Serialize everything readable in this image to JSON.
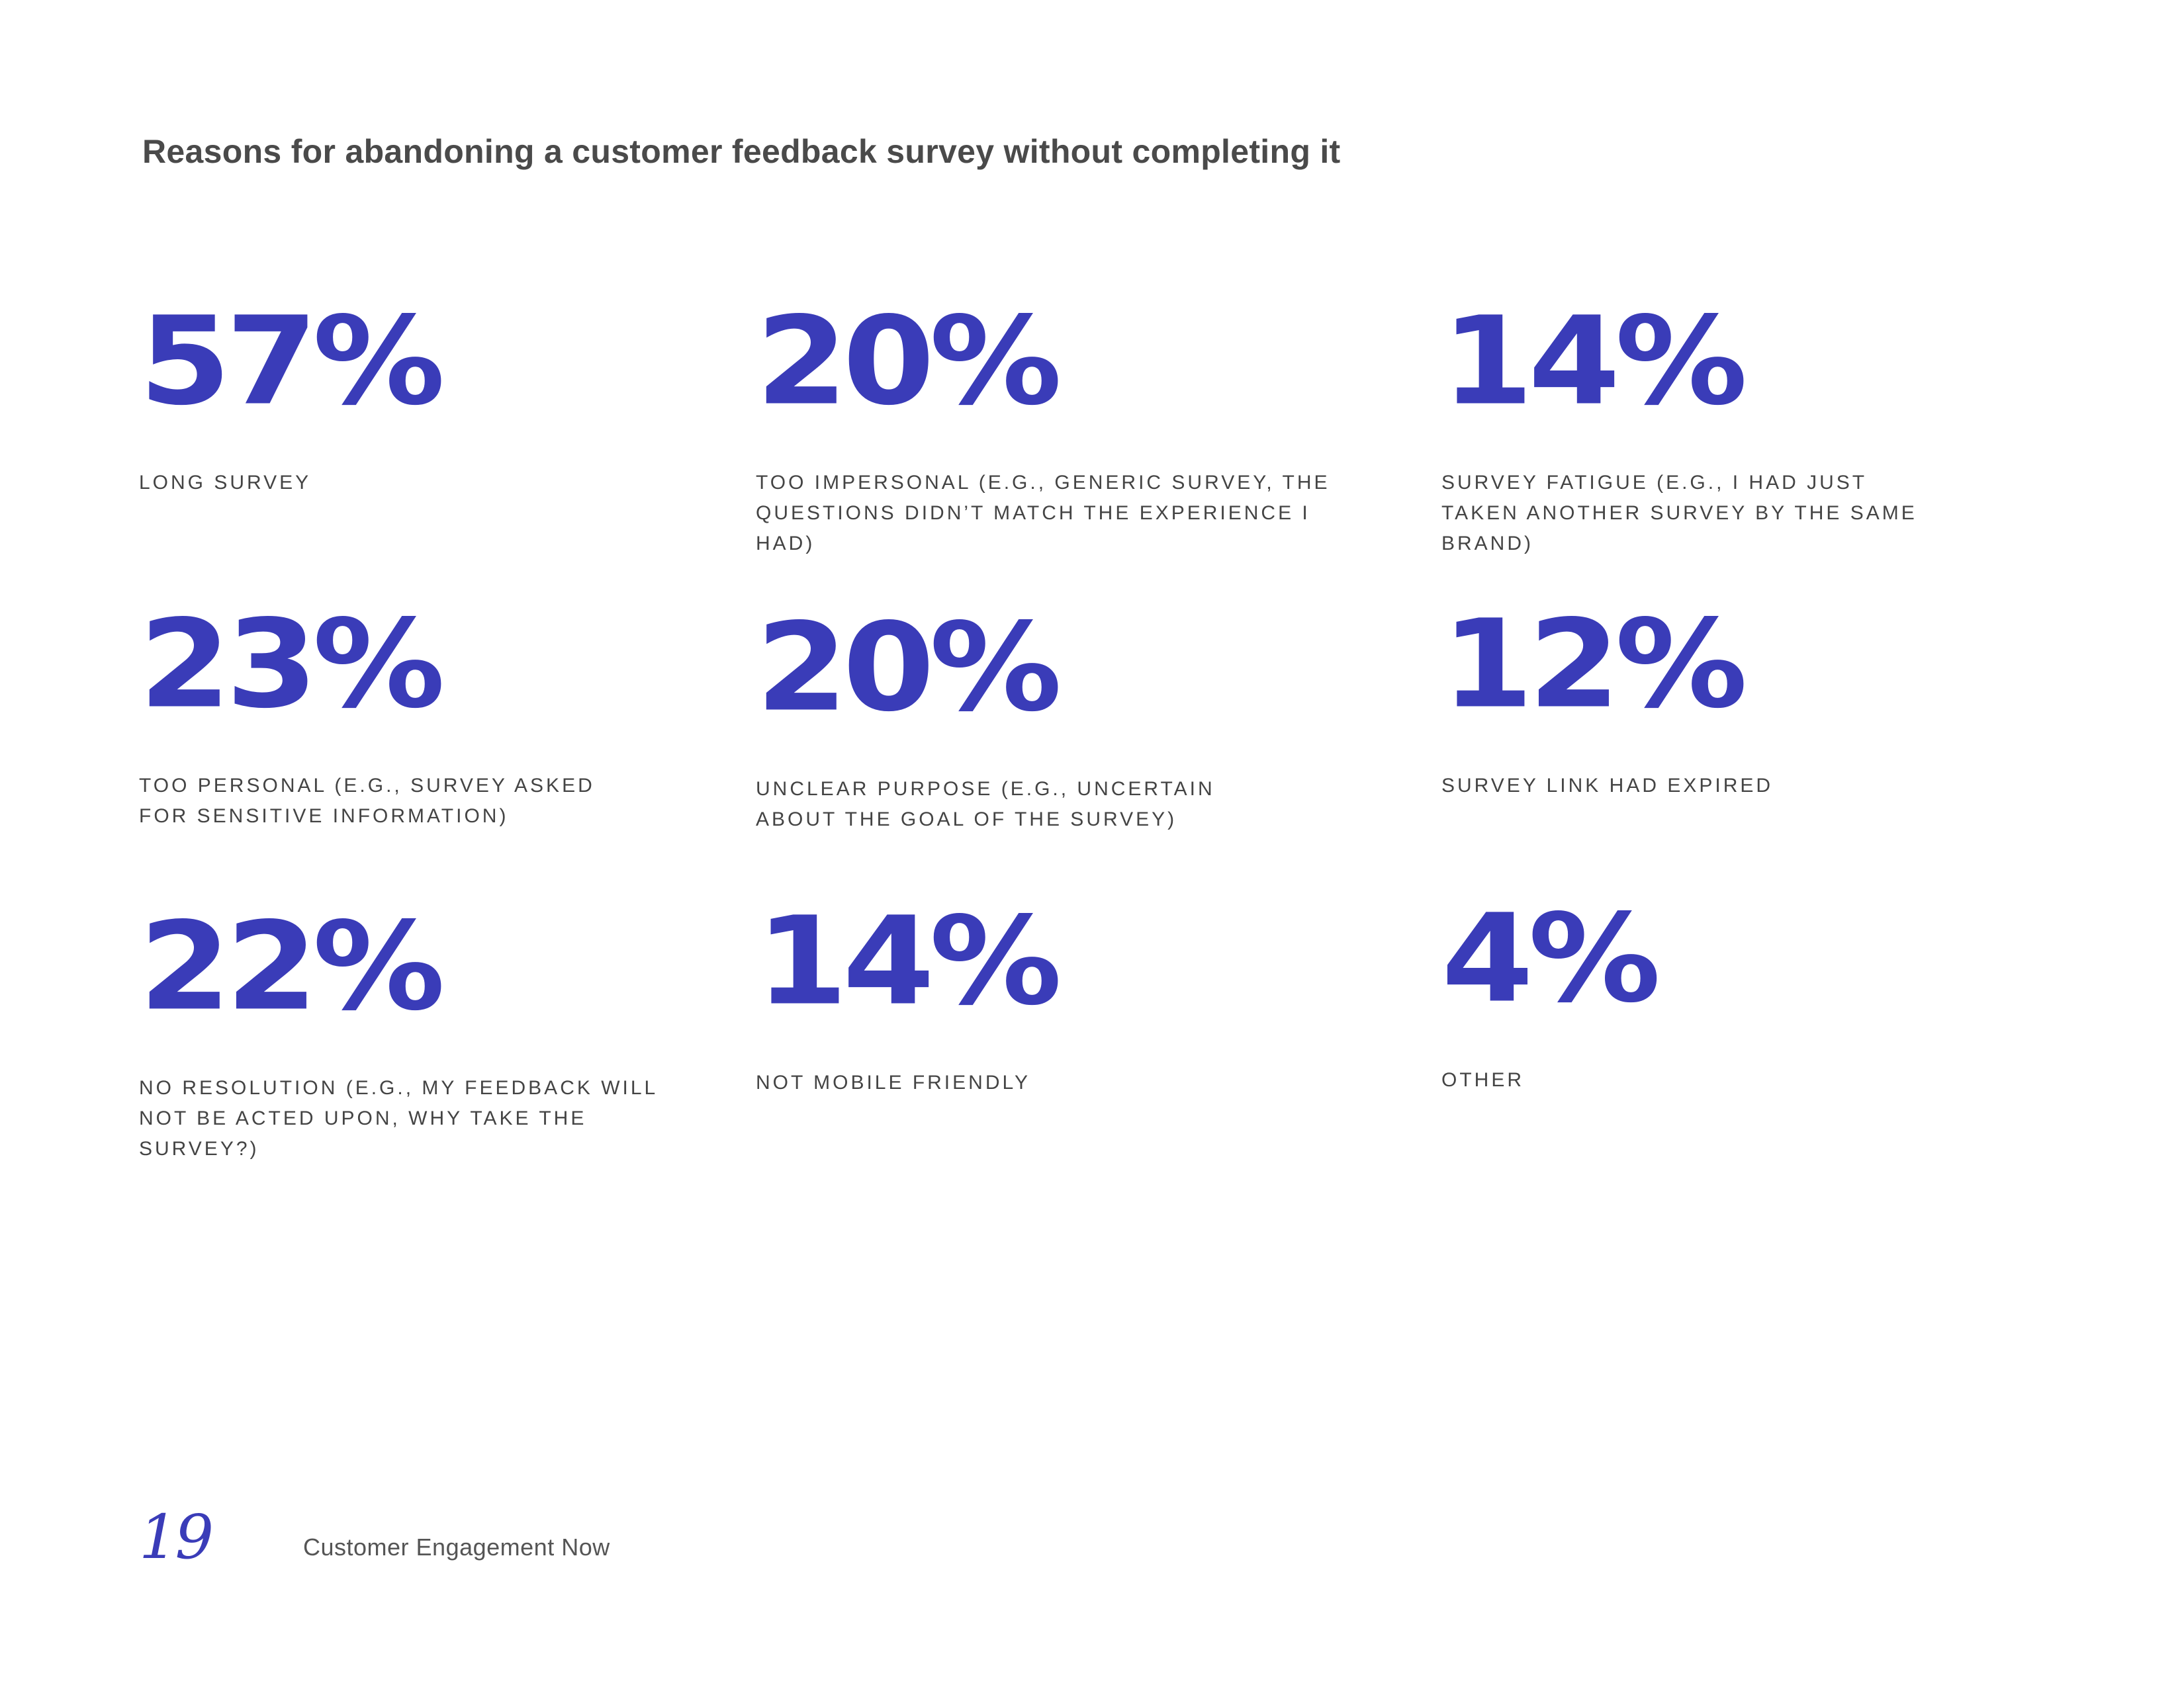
{
  "title": "Reasons for abandoning a customer feedback survey without completing it",
  "stats": [
    {
      "value": "57%",
      "label": "LONG SURVEY"
    },
    {
      "value": "20%",
      "label": "TOO IMPERSONAL (E.G., GENERIC SURVEY, THE QUESTIONS DIDN’T MATCH THE EXPERIENCE I HAD)"
    },
    {
      "value": "14%",
      "label": "SURVEY FATIGUE (E.G., I HAD JUST TAKEN ANOTHER SURVEY BY THE SAME BRAND)"
    },
    {
      "value": "23%",
      "label": "TOO PERSONAL (E.G., SURVEY ASKED FOR SENSITIVE INFORMATION)"
    },
    {
      "value": "20%",
      "label": "UNCLEAR PURPOSE (E.G., UNCERTAIN ABOUT THE GOAL OF THE SURVEY)"
    },
    {
      "value": "12%",
      "label": "SURVEY LINK HAD EXPIRED"
    },
    {
      "value": "22%",
      "label": "NO RESOLUTION (E.G., MY FEEDBACK WILL NOT BE ACTED UPON, WHY TAKE THE SURVEY?)"
    },
    {
      "value": "14%",
      "label": "NOT MOBILE FRIENDLY"
    },
    {
      "value": "4%",
      "label": "OTHER"
    }
  ],
  "footer": {
    "page_number": "19",
    "publication": "Customer Engagement Now"
  },
  "colors": {
    "accent": "#3a3cb8",
    "text": "#444444",
    "title": "#4a4a4a"
  }
}
